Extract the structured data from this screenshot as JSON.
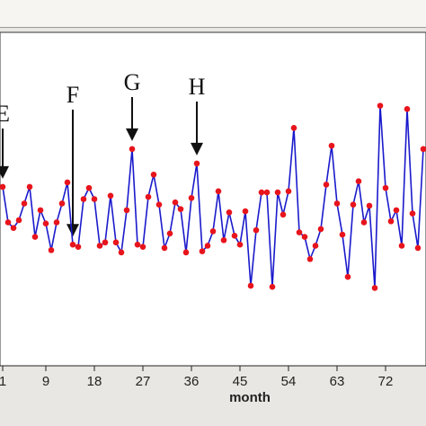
{
  "colors": {
    "series_line": "#1a1acc",
    "series_marker": "#e8141c",
    "plot_background": "#ffffff",
    "frame_background": "#e9e7e3",
    "axis": "#222222"
  },
  "chart_data": {
    "type": "line",
    "title": "",
    "xlabel": "month",
    "ylabel": "",
    "xlim": [
      0.5,
      79.5
    ],
    "ylim": [
      0.0,
      3.0
    ],
    "grid": false,
    "legend": "none",
    "x_ticks": [
      1,
      9,
      18,
      27,
      36,
      45,
      54,
      63,
      72
    ],
    "x_tick_labels": [
      "1",
      "9",
      "18",
      "27",
      "36",
      "45",
      "54",
      "63",
      "72"
    ],
    "series": [
      {
        "marker": "circle",
        "x": [
          1,
          2,
          3,
          4,
          5,
          6,
          7,
          8,
          9,
          10,
          11,
          12,
          13,
          14,
          15,
          16,
          17,
          18,
          19,
          20,
          21,
          22,
          23,
          24,
          25,
          26,
          27,
          28,
          29,
          30,
          31,
          32,
          33,
          34,
          35,
          36,
          37,
          38,
          39,
          40,
          41,
          42,
          43,
          44,
          45,
          46,
          47,
          48,
          49,
          50,
          51,
          52,
          53,
          54,
          55,
          56,
          57,
          58,
          59,
          60,
          61,
          62,
          63,
          64,
          65,
          66,
          67,
          68,
          69,
          70,
          71,
          72,
          73,
          74,
          75,
          76,
          77,
          78,
          79
        ],
        "y": [
          1.61,
          1.29,
          1.24,
          1.31,
          1.46,
          1.61,
          1.16,
          1.4,
          1.28,
          1.04,
          1.29,
          1.46,
          1.65,
          1.09,
          1.07,
          1.5,
          1.6,
          1.5,
          1.08,
          1.11,
          1.53,
          1.11,
          1.02,
          1.4,
          1.95,
          1.09,
          1.07,
          1.52,
          1.72,
          1.45,
          1.06,
          1.19,
          1.47,
          1.41,
          1.02,
          1.51,
          1.82,
          1.03,
          1.08,
          1.21,
          1.57,
          1.13,
          1.38,
          1.17,
          1.09,
          1.39,
          0.72,
          1.22,
          1.56,
          1.56,
          0.71,
          1.56,
          1.36,
          1.57,
          2.14,
          1.2,
          1.16,
          0.96,
          1.08,
          1.23,
          1.63,
          1.98,
          1.46,
          1.18,
          0.8,
          1.45,
          1.66,
          1.29,
          1.44,
          0.7,
          2.34,
          1.6,
          1.3,
          1.4,
          1.08,
          2.31,
          1.37,
          1.06,
          1.95
        ]
      }
    ],
    "annotations": [
      {
        "label": "E",
        "x": 1
      },
      {
        "label": "F",
        "x": 14
      },
      {
        "label": "G",
        "x": 25
      },
      {
        "label": "H",
        "x": 37
      }
    ]
  }
}
